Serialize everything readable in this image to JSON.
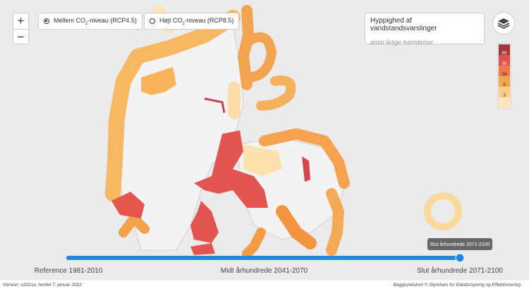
{
  "zoom": {
    "in": "+",
    "out": "−"
  },
  "scenarios": {
    "selected": 0,
    "options": [
      {
        "pre": "Mellem CO",
        "sub": "2",
        "post": "-niveau (RCP4.5)"
      },
      {
        "pre": "Højt CO",
        "sub": "2",
        "post": "-niveau (RCP8.5)"
      }
    ]
  },
  "legend": {
    "title": "Hyppighed af vandstandsvarslinger",
    "subtitle": "antal årlige hændelser",
    "ticks": [
      60,
      30,
      18,
      9,
      3
    ],
    "colors": [
      "#a2363a",
      "#e2504b",
      "#ee7a4a",
      "#f6a54f",
      "#fbcd86"
    ]
  },
  "slider": {
    "selected": 2,
    "tooltip": "Slut århundrede 2071-2100",
    "labels": [
      "Reference 1981-2010",
      "Midt århundrede 2041-2070",
      "Slut århundrede 2071-2100"
    ]
  },
  "footer": {
    "version": "Version: v2021a, hentet 7. januar 2022",
    "credit": "Baggrundskort © Styrelsen for Dataforsyning og Effektivisering"
  }
}
